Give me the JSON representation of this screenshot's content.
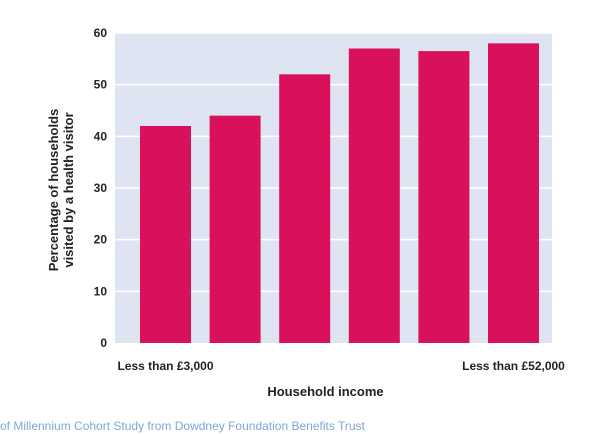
{
  "colors": {
    "plot_background": "#dfe4f3",
    "grid": "#ffffff",
    "bar": "#d9115c",
    "text": "#222222"
  },
  "chart_data": {
    "type": "bar",
    "categories": [
      "",
      "",
      "",
      "",
      "",
      ""
    ],
    "category_labels": [
      {
        "index": 0,
        "text": "Less than £3,000"
      },
      {
        "index": 5,
        "text": "Less than £52,000"
      }
    ],
    "values": [
      42,
      44,
      52,
      57,
      56.5,
      58
    ],
    "xlabel": "Household income",
    "ylabel": "Percentage of households visited by a health visitor",
    "ylabel_lines": [
      "Percentage of households",
      "visited by a health visitor"
    ],
    "ylim": [
      0,
      60
    ],
    "yticks": [
      0,
      10,
      20,
      30,
      40,
      50,
      60
    ],
    "grid": true
  },
  "footer_text": "of Millennium Cohort Study from Dowdney Foundation Benefits Trust"
}
